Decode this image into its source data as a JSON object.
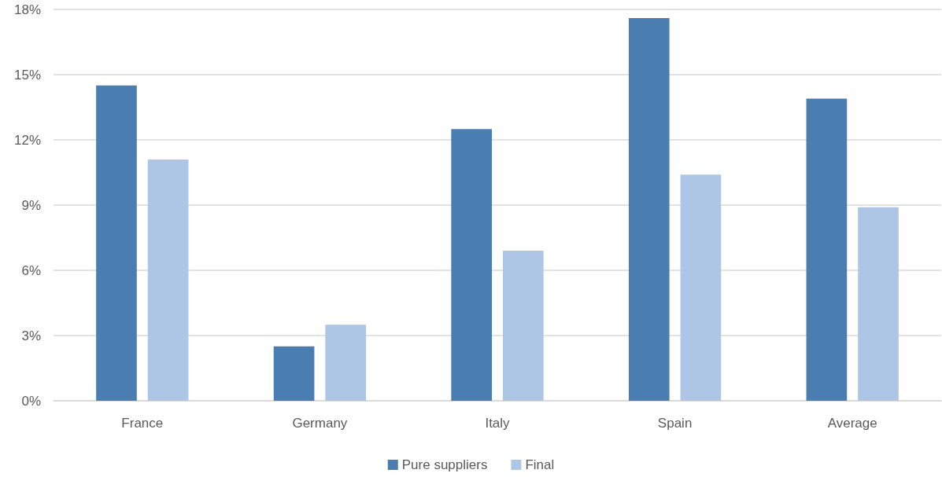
{
  "chart_data": {
    "type": "bar",
    "categories": [
      "France",
      "Germany",
      "Italy",
      "Spain",
      "Average"
    ],
    "series": [
      {
        "name": "Pure suppliers",
        "color": "#4a7eb0",
        "values": [
          14.5,
          2.5,
          12.5,
          17.6,
          13.9
        ]
      },
      {
        "name": "Final",
        "color": "#adc6e5",
        "values": [
          11.1,
          3.5,
          6.9,
          10.4,
          8.9
        ]
      }
    ],
    "ylim": [
      0,
      18
    ],
    "yticks": [
      {
        "value": 0,
        "label": "0%"
      },
      {
        "value": 3,
        "label": "3%"
      },
      {
        "value": 6,
        "label": "6%"
      },
      {
        "value": 9,
        "label": "9%"
      },
      {
        "value": 12,
        "label": "12%"
      },
      {
        "value": 15,
        "label": "15%"
      },
      {
        "value": 18,
        "label": "18%"
      }
    ],
    "grid": "y",
    "legend": "bottom"
  }
}
